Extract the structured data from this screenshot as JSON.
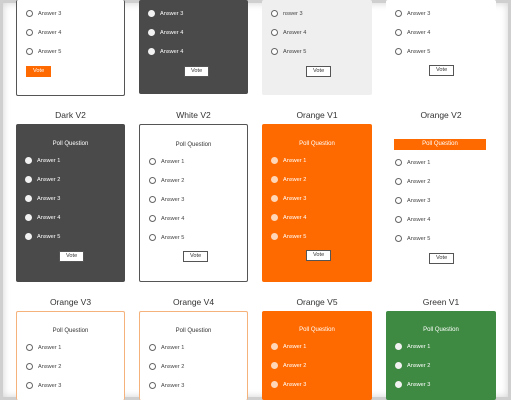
{
  "colors": {
    "dark": "#4a4a4a",
    "orange": "#ff6a00",
    "green": "#3f8a42",
    "light": "#efefef"
  },
  "top_row": [
    {
      "answers": [
        "Answer 3",
        "Answer 4",
        "Answer 5"
      ],
      "vote": "Vote"
    },
    {
      "answers": [
        "Answer 3",
        "Answer 4",
        "Answer 4"
      ],
      "vote": "Vote"
    },
    {
      "answers": [
        "nswer 3",
        "Answer 4",
        "Answer 5"
      ],
      "vote": "Vote"
    },
    {
      "answers": [
        "Answer 3",
        "Answer 4",
        "Answer 5"
      ],
      "vote": "Vote"
    }
  ],
  "middle_row": [
    {
      "title": "Dark V2",
      "question": "Poll Question",
      "answers": [
        "Answer 1",
        "Answer 2",
        "Answer 3",
        "Answer 4",
        "Answer 5"
      ],
      "vote": "Vote"
    },
    {
      "title": "White V2",
      "question": "Poll Question",
      "answers": [
        "Answer 1",
        "Answer 2",
        "Answer 3",
        "Answer 4",
        "Answer 5"
      ],
      "vote": "Vote"
    },
    {
      "title": "Orange V1",
      "question": "Poll Question",
      "answers": [
        "Answer 1",
        "Answer 2",
        "Answer 3",
        "Answer 4",
        "Answer 5"
      ],
      "vote": "Vote"
    },
    {
      "title": "Orange V2",
      "question": "Poll Question",
      "answers": [
        "Answer 1",
        "Answer 2",
        "Answer 3",
        "Answer 4",
        "Answer 5"
      ],
      "vote": "Vote"
    }
  ],
  "bottom_row": [
    {
      "title": "Orange V3",
      "question": "Poll Question",
      "answers": [
        "Answer 1",
        "Answer 2",
        "Answer 3"
      ]
    },
    {
      "title": "Orange V4",
      "question": "Poll Question",
      "answers": [
        "Answer 1",
        "Answer 2",
        "Answer 3"
      ]
    },
    {
      "title": "Orange V5",
      "question": "Poll Question",
      "answers": [
        "Answer 1",
        "Answer 2",
        "Answer 3"
      ]
    },
    {
      "title": "Green V1",
      "question": "Poll Question",
      "answers": [
        "Answer 1",
        "Answer 2",
        "Answer 3"
      ]
    }
  ]
}
